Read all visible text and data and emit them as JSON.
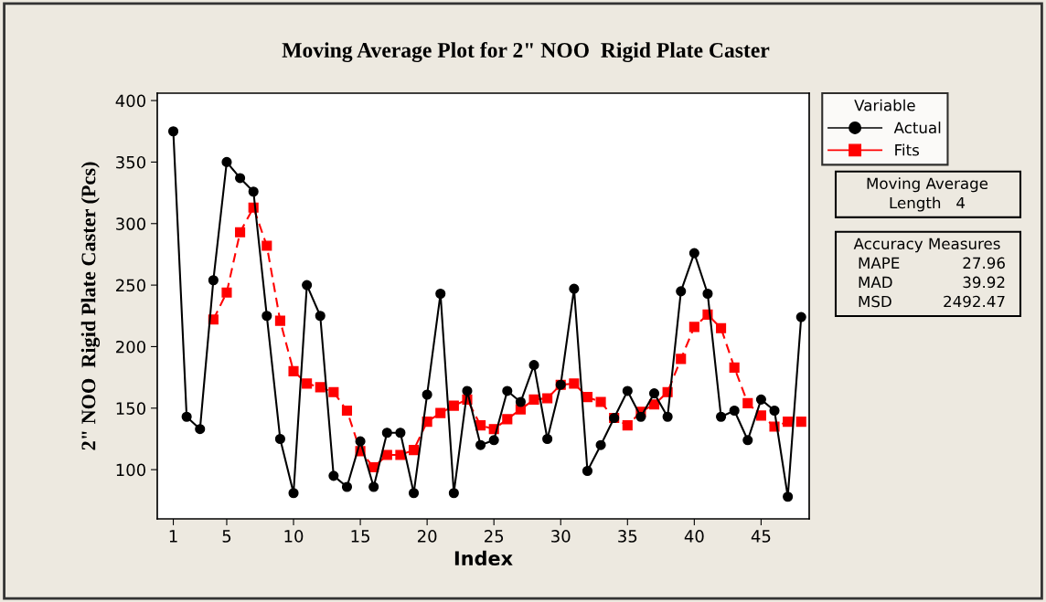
{
  "chart_data": {
    "type": "line",
    "title": "Moving Average Plot for 2\" NOO  Rigid Plate Caster",
    "xlabel": "Index",
    "ylabel": "2\" NOO  Rigid Plate Caster (Pcs)",
    "legend_title": "Variable",
    "legend": "right",
    "grid": false,
    "xlim": [
      -0.2,
      48.6
    ],
    "xticks": [
      1,
      5,
      10,
      15,
      20,
      25,
      30,
      35,
      40,
      45
    ],
    "ylim": [
      60,
      406
    ],
    "yticks": [
      100,
      150,
      200,
      250,
      300,
      350,
      400
    ],
    "series": [
      {
        "name": "Actual",
        "color": "#000000",
        "marker": "circle",
        "line_style": "solid",
        "x": [
          1,
          2,
          3,
          4,
          5,
          6,
          7,
          8,
          9,
          10,
          11,
          12,
          13,
          14,
          15,
          16,
          17,
          18,
          19,
          20,
          21,
          22,
          23,
          24,
          25,
          26,
          27,
          28,
          29,
          30,
          31,
          32,
          33,
          34,
          35,
          36,
          37,
          38,
          39,
          40,
          41,
          42,
          43,
          44,
          45,
          46,
          47,
          48
        ],
        "values": [
          375,
          143,
          133,
          254,
          350,
          337,
          326,
          225,
          125,
          81,
          250,
          225,
          95,
          86,
          123,
          86,
          130,
          130,
          81,
          161,
          243,
          81,
          164,
          120,
          124,
          164,
          155,
          185,
          125,
          169,
          247,
          99,
          120,
          142,
          164,
          143,
          162,
          143,
          245,
          276,
          243,
          143,
          148,
          124,
          157,
          148,
          78,
          224
        ]
      },
      {
        "name": "Fits",
        "color": "#ff0000",
        "marker": "square",
        "line_style": "dashed",
        "x": [
          4,
          5,
          6,
          7,
          8,
          9,
          10,
          11,
          12,
          13,
          14,
          15,
          16,
          17,
          18,
          19,
          20,
          21,
          22,
          23,
          24,
          25,
          26,
          27,
          28,
          29,
          30,
          31,
          32,
          33,
          34,
          35,
          36,
          37,
          38,
          39,
          40,
          41,
          42,
          43,
          44,
          45,
          46,
          47,
          48
        ],
        "values": [
          222,
          244,
          293,
          313,
          282,
          221,
          180,
          170,
          167,
          163,
          148,
          115,
          102,
          112,
          112,
          116,
          139,
          146,
          152,
          157,
          136,
          133,
          141,
          149,
          157,
          158,
          169,
          170,
          159,
          155,
          142,
          136,
          147,
          153,
          163,
          190,
          216,
          226,
          215,
          183,
          154,
          144,
          135,
          139,
          139
        ]
      }
    ],
    "annotations": [
      "Moving Average\nLength   4",
      "Accuracy Measures\nMAPE\t27.96\nMAD\t39.92\nMSD\t2492.47"
    ]
  }
}
